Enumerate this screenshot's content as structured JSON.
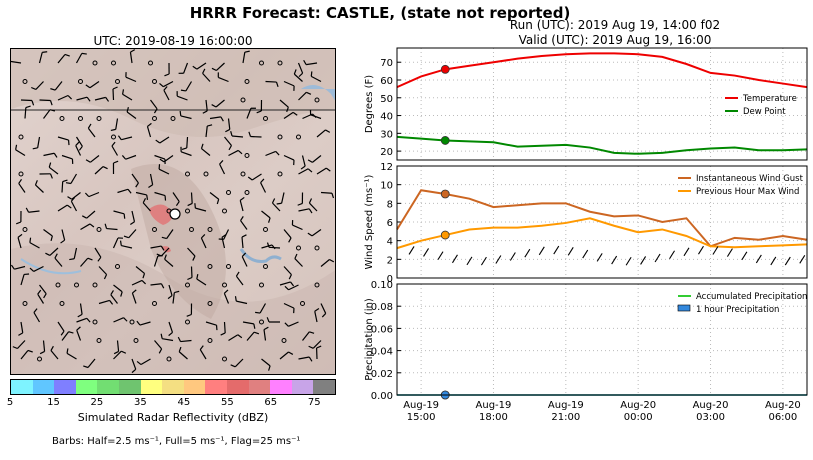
{
  "header": {
    "title": "HRRR Forecast: CASTLE, (state not reported)",
    "run": "Run (UTC): 2019 Aug 19, 14:00 f02",
    "valid": "Valid (UTC): 2019 Aug 19, 16:00"
  },
  "map": {
    "utc_label": "UTC: 2019-08-19 16:00:00",
    "colorbar": {
      "label": "Simulated Radar Reflectivity (dBZ)",
      "ticks": [
        "5",
        "15",
        "25",
        "35",
        "45",
        "55",
        "65",
        "75"
      ],
      "colors": [
        "#7ef3ff",
        "#60c6ff",
        "#7f7fff",
        "#7fff7f",
        "#72de72",
        "#6fc46f",
        "#ffff7f",
        "#f4df82",
        "#ffc87f",
        "#ff7f7f",
        "#e46b6b",
        "#e08080",
        "#ff80ff",
        "#c8a4e8",
        "#808080"
      ]
    },
    "barbs_note": "Barbs: Half=2.5 ms⁻¹, Full=5 ms⁻¹, Flag=25 ms⁻¹"
  },
  "x_ticks": [
    "Aug-19\n15:00",
    "Aug-19\n18:00",
    "Aug-19\n21:00",
    "Aug-20\n00:00",
    "Aug-20\n03:00",
    "Aug-20\n06:00"
  ],
  "colors": {
    "temperature": "#ee0000",
    "dew_point": "#008800",
    "gust": "#cc6622",
    "max_wind": "#ff9900",
    "accum_precip": "#33cc33",
    "hourly_precip": "#3388dd",
    "grid": "#bbbbbb"
  },
  "chart_data": [
    {
      "type": "line",
      "ylabel": "Degrees (F)",
      "ylim": [
        15,
        78
      ],
      "yticks": [
        20,
        30,
        40,
        50,
        60,
        70
      ],
      "x_hours": [
        14,
        15,
        16,
        17,
        18,
        19,
        20,
        21,
        22,
        23,
        24,
        25,
        26,
        27,
        28,
        29,
        30,
        31
      ],
      "series": [
        {
          "name": "Temperature",
          "values": [
            56,
            62,
            66,
            68,
            70,
            72,
            73.5,
            74.5,
            75,
            75,
            74.5,
            73,
            69,
            64,
            62.5,
            60,
            58,
            56
          ]
        },
        {
          "name": "Dew Point",
          "values": [
            28,
            27,
            26,
            25.5,
            25,
            22.5,
            23,
            23.5,
            22,
            19,
            18.5,
            19,
            20.5,
            21.5,
            22,
            20.5,
            20.5,
            21
          ]
        }
      ],
      "marker_hour": 16,
      "legend": "right",
      "grid": true
    },
    {
      "type": "line",
      "ylabel": "Wind Speed (ms⁻¹)",
      "ylim": [
        0,
        12
      ],
      "yticks": [
        0,
        2,
        4,
        6,
        8,
        10,
        12
      ],
      "x_hours": [
        14,
        15,
        16,
        17,
        18,
        19,
        20,
        21,
        22,
        23,
        24,
        25,
        26,
        27,
        28,
        29,
        30,
        31
      ],
      "series": [
        {
          "name": "Instantaneous Wind Gust",
          "values": [
            5.2,
            9.4,
            9.0,
            8.5,
            7.6,
            7.8,
            8.0,
            8.0,
            7.1,
            6.6,
            6.7,
            6.0,
            6.4,
            3.4,
            4.3,
            4.1,
            4.5,
            4.1
          ]
        },
        {
          "name": "Previous Hour Max Wind",
          "values": [
            3.2,
            4.0,
            4.6,
            5.2,
            5.4,
            5.4,
            5.6,
            5.9,
            6.4,
            5.6,
            4.9,
            5.2,
            4.5,
            3.4,
            3.3,
            3.4,
            3.5,
            3.6
          ]
        }
      ],
      "marker_hour": 16,
      "legend": "top-right",
      "grid": true
    },
    {
      "type": "line",
      "ylabel": "Precipitation (in)",
      "ylim": [
        0,
        0.1
      ],
      "yticks": [
        "0.00",
        "0.02",
        "0.04",
        "0.06",
        "0.08",
        "0.10"
      ],
      "x_hours": [
        14,
        15,
        16,
        17,
        18,
        19,
        20,
        21,
        22,
        23,
        24,
        25,
        26,
        27,
        28,
        29,
        30,
        31
      ],
      "series": [
        {
          "name": "Accumulated Precipitation",
          "values": [
            0,
            0,
            0,
            0,
            0,
            0,
            0,
            0,
            0,
            0,
            0,
            0,
            0,
            0,
            0,
            0,
            0,
            0
          ]
        },
        {
          "name": "1 hour Precipitation",
          "values": [
            0,
            0,
            0,
            0,
            0,
            0,
            0,
            0,
            0,
            0,
            0,
            0,
            0,
            0,
            0,
            0,
            0,
            0
          ]
        }
      ],
      "marker_hour": 16,
      "legend": "top-right",
      "grid": true
    }
  ]
}
